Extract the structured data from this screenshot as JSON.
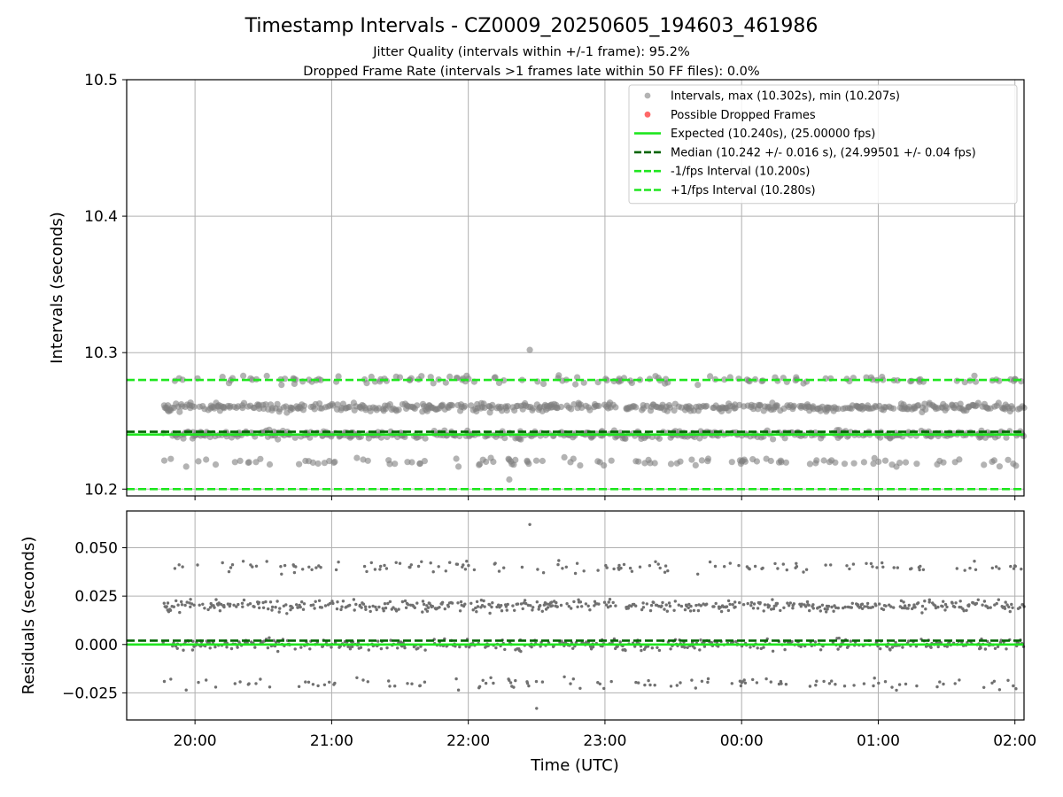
{
  "chart_data": [
    {
      "type": "scatter",
      "title": "Timestamp Intervals - CZ0009_20250605_194603_461986",
      "subtitle_lines": [
        "Jitter Quality (intervals within +/-1 frame): 95.2%",
        "Dropped Frame Rate (intervals >1 frames late within 50 FF files): 0.0%"
      ],
      "xlabel": "",
      "ylabel": "Intervals (seconds)",
      "x_axis": {
        "type": "time",
        "start": "19:30",
        "end": "02:04",
        "ticks": [
          "20:00",
          "21:00",
          "22:00",
          "23:00",
          "00:00",
          "01:00",
          "02:00"
        ]
      },
      "ylim": [
        10.195,
        10.5
      ],
      "yticks": [
        "10.2",
        "10.3",
        "10.4",
        "10.5"
      ],
      "grid": true,
      "legend_position": "top-right",
      "series": [
        {
          "name": "Intervals, max (10.302s), min (10.207s)",
          "color": "#808080",
          "x_range": [
            "19:46",
            "02:04"
          ],
          "levels_s": [
            10.22,
            10.24,
            10.26,
            10.28
          ],
          "max": 10.302,
          "max_at": "22:27",
          "min": 10.207,
          "min_at": "22:18"
        },
        {
          "name": "Possible Dropped Frames",
          "color": "#ff4d4d",
          "values": []
        }
      ],
      "reference_lines": [
        {
          "name": "Expected (10.240s), (25.00000 fps)",
          "y": 10.24,
          "style": "solid",
          "color": "#1fe61f"
        },
        {
          "name": "Median (10.242 +/- 0.016 s), (24.99501 +/- 0.04 fps)",
          "y": 10.242,
          "style": "dashed",
          "color": "#006400"
        },
        {
          "name": "-1/fps Interval (10.200s)",
          "y": 10.2,
          "style": "dashed",
          "color": "#1fe61f"
        },
        {
          "name": "+1/fps Interval (10.280s)",
          "y": 10.28,
          "style": "dashed",
          "color": "#1fe61f"
        }
      ]
    },
    {
      "type": "scatter",
      "xlabel": "Time (UTC)",
      "ylabel": "Residuals (seconds)",
      "ylim": [
        -0.039,
        0.069
      ],
      "yticks": [
        "−0.025",
        "0.000",
        "0.025",
        "0.050"
      ],
      "ytick_values": [
        -0.025,
        0,
        0.025,
        0.05
      ],
      "grid": true,
      "series": [
        {
          "name": "",
          "color": "#707070",
          "levels_s": [
            -0.02,
            0.0,
            0.02,
            0.04
          ],
          "max": 0.062,
          "min": -0.033
        }
      ],
      "reference_lines": [
        {
          "y": 0.0,
          "style": "solid",
          "color": "#1fe61f"
        },
        {
          "y": 0.002,
          "style": "dashed",
          "color": "#006400"
        }
      ]
    }
  ]
}
